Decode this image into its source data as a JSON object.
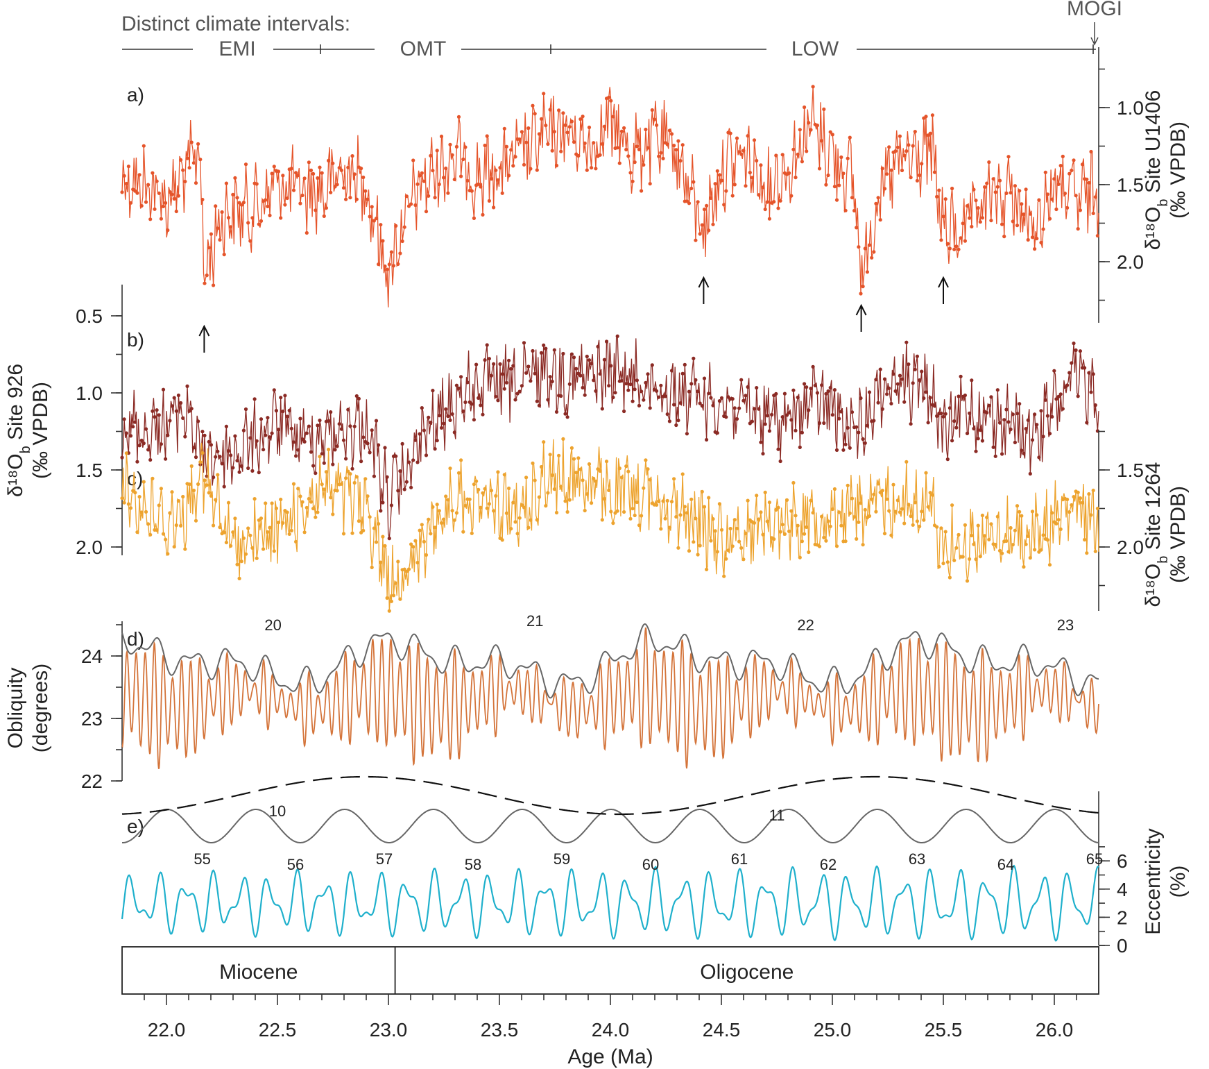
{
  "chart_data": {
    "type": "line",
    "xlabel": "Age (Ma)",
    "xlim": [
      21.8,
      26.2
    ],
    "xticks": [
      "22.0",
      "22.5",
      "23.0",
      "23.5",
      "24.0",
      "24.5",
      "25.0",
      "25.5",
      "26.0"
    ],
    "intervals": {
      "caption": "Distinct climate intervals:",
      "labels": [
        {
          "label": "EMI",
          "start": 21.8,
          "end": 22.72
        },
        {
          "label": "OMT",
          "start": 22.72,
          "end": 23.72
        },
        {
          "label": "LOW",
          "start": 23.72,
          "end": 26.18
        },
        {
          "label": "MOGI",
          "start": 26.18,
          "end": 26.2
        }
      ]
    },
    "panels": [
      {
        "id": "a",
        "panel_label": "a)",
        "ylabel": "δ18Ob Site U1406 (‰ VPDB)",
        "ylabel_line1": "δ¹⁸O",
        "ylabel_sub": "b",
        "ylabel_rest": " Site U1406",
        "ylabel_line2": "(‰ VPDB)",
        "axis_side": "right",
        "yinverted": true,
        "ylim": [
          0.7,
          2.4
        ],
        "yticks": [
          "1.0",
          "1.5",
          "2.0"
        ],
        "color": "#e5542a",
        "series_anchors": [
          [
            21.8,
            1.45
          ],
          [
            21.9,
            1.5
          ],
          [
            22.0,
            1.6
          ],
          [
            22.1,
            1.4
          ],
          [
            22.15,
            1.25
          ],
          [
            22.17,
            2.1
          ],
          [
            22.25,
            1.7
          ],
          [
            22.4,
            1.65
          ],
          [
            22.5,
            1.5
          ],
          [
            22.6,
            1.55
          ],
          [
            22.7,
            1.55
          ],
          [
            22.8,
            1.4
          ],
          [
            22.9,
            1.5
          ],
          [
            23.0,
            2.1
          ],
          [
            23.05,
            1.8
          ],
          [
            23.15,
            1.5
          ],
          [
            23.3,
            1.3
          ],
          [
            23.4,
            1.45
          ],
          [
            23.5,
            1.4
          ],
          [
            23.6,
            1.3
          ],
          [
            23.7,
            1.2
          ],
          [
            23.8,
            1.15
          ],
          [
            23.9,
            1.25
          ],
          [
            24.0,
            1.1
          ],
          [
            24.1,
            1.3
          ],
          [
            24.2,
            1.2
          ],
          [
            24.3,
            1.3
          ],
          [
            24.42,
            1.8
          ],
          [
            24.5,
            1.4
          ],
          [
            24.6,
            1.3
          ],
          [
            24.7,
            1.5
          ],
          [
            24.8,
            1.4
          ],
          [
            24.9,
            1.1
          ],
          [
            25.0,
            1.3
          ],
          [
            25.1,
            1.5
          ],
          [
            25.13,
            2.1
          ],
          [
            25.2,
            1.6
          ],
          [
            25.3,
            1.35
          ],
          [
            25.45,
            1.3
          ],
          [
            25.5,
            1.8
          ],
          [
            25.6,
            1.8
          ],
          [
            25.7,
            1.6
          ],
          [
            25.8,
            1.55
          ],
          [
            25.9,
            1.8
          ],
          [
            26.0,
            1.5
          ],
          [
            26.1,
            1.6
          ],
          [
            26.2,
            1.55
          ]
        ],
        "amplitude": 0.22,
        "arrows": [
          22.17,
          24.42,
          25.13,
          25.5
        ]
      },
      {
        "id": "b",
        "panel_label": "b)",
        "ylabel": "δ18Ob Site 926 (‰ VPDB)",
        "ylabel_line1": "δ¹⁸O",
        "ylabel_sub": "b",
        "ylabel_rest": " Site 926",
        "ylabel_line2": "(‰ VPDB)",
        "axis_side": "left",
        "yinverted": true,
        "ylim": [
          0.3,
          2.1
        ],
        "yticks": [
          "0.5",
          "1.0",
          "1.5",
          "2.0"
        ],
        "color": "#8b2a24",
        "series_anchors": [
          [
            21.8,
            1.2
          ],
          [
            21.9,
            1.25
          ],
          [
            22.0,
            1.2
          ],
          [
            22.1,
            1.1
          ],
          [
            22.15,
            1.4
          ],
          [
            22.3,
            1.4
          ],
          [
            22.5,
            1.2
          ],
          [
            22.6,
            1.3
          ],
          [
            22.8,
            1.25
          ],
          [
            22.9,
            1.2
          ],
          [
            23.0,
            1.7
          ],
          [
            23.05,
            1.6
          ],
          [
            23.15,
            1.3
          ],
          [
            23.3,
            1.05
          ],
          [
            23.4,
            0.95
          ],
          [
            23.6,
            0.95
          ],
          [
            23.7,
            0.85
          ],
          [
            23.8,
            0.9
          ],
          [
            23.9,
            0.9
          ],
          [
            24.0,
            0.85
          ],
          [
            24.2,
            0.95
          ],
          [
            24.3,
            1.0
          ],
          [
            24.5,
            1.05
          ],
          [
            24.6,
            1.1
          ],
          [
            24.8,
            1.2
          ],
          [
            24.9,
            1.05
          ],
          [
            25.0,
            1.1
          ],
          [
            25.1,
            1.3
          ],
          [
            25.2,
            1.0
          ],
          [
            25.3,
            0.9
          ],
          [
            25.45,
            1.0
          ],
          [
            25.5,
            1.3
          ],
          [
            25.6,
            1.1
          ],
          [
            25.8,
            1.2
          ],
          [
            25.9,
            1.3
          ],
          [
            26.0,
            1.1
          ],
          [
            26.1,
            0.9
          ],
          [
            26.2,
            1.0
          ]
        ],
        "amplitude": 0.2
      },
      {
        "id": "c",
        "panel_label": "c)",
        "ylabel": "δ18Ob Site 1264 (‰ VPDB)",
        "ylabel_line1": "δ¹⁸O",
        "ylabel_sub": "b",
        "ylabel_rest": " Site 1264",
        "ylabel_line2": "(‰ VPDB)",
        "axis_side": "right",
        "yinverted": true,
        "ylim": [
          1.2,
          2.4
        ],
        "yticks": [
          "1.5",
          "2.0"
        ],
        "color": "#eda32e",
        "series_anchors": [
          [
            21.8,
            1.6
          ],
          [
            21.9,
            1.75
          ],
          [
            22.0,
            1.85
          ],
          [
            22.1,
            1.75
          ],
          [
            22.15,
            1.5
          ],
          [
            22.3,
            2.0
          ],
          [
            22.5,
            1.9
          ],
          [
            22.7,
            1.6
          ],
          [
            22.9,
            1.75
          ],
          [
            23.0,
            2.2
          ],
          [
            23.1,
            2.15
          ],
          [
            23.2,
            1.9
          ],
          [
            23.3,
            1.65
          ],
          [
            23.5,
            1.75
          ],
          [
            23.6,
            1.8
          ],
          [
            23.7,
            1.55
          ],
          [
            23.85,
            1.55
          ],
          [
            24.0,
            1.65
          ],
          [
            24.2,
            1.65
          ],
          [
            24.35,
            1.8
          ],
          [
            24.5,
            1.95
          ],
          [
            24.7,
            1.85
          ],
          [
            24.9,
            1.8
          ],
          [
            25.1,
            1.75
          ],
          [
            25.3,
            1.7
          ],
          [
            25.45,
            1.75
          ],
          [
            25.5,
            2.0
          ],
          [
            25.7,
            1.95
          ],
          [
            25.9,
            1.9
          ],
          [
            26.1,
            1.75
          ],
          [
            26.2,
            1.85
          ]
        ],
        "amplitude": 0.2
      },
      {
        "id": "d",
        "panel_label": "d)",
        "ylabel": "Obliquity (degrees)",
        "ylabel_line1": "Obliquity",
        "ylabel_sub": "",
        "ylabel_rest": "",
        "ylabel_line2": "(degrees)",
        "axis_side": "left",
        "yinverted": false,
        "ylim": [
          22,
          25
        ],
        "yticks": [
          "22",
          "23",
          "24"
        ],
        "color": "#d4743a",
        "envelope_color": "#666666",
        "period_ma": 0.041,
        "mean": 23.3,
        "cycle_labels": [
          {
            "label": "20",
            "x": 22.48
          },
          {
            "label": "21",
            "x": 23.66
          },
          {
            "label": "22",
            "x": 24.88
          },
          {
            "label": "23",
            "x": 26.05
          }
        ]
      },
      {
        "id": "e",
        "panel_label": "e)",
        "ylabel": "Eccentricity (%)",
        "ylabel_line1": "Eccentricity",
        "ylabel_sub": "",
        "ylabel_rest": "",
        "ylabel_line2": "(%)",
        "axis_side": "right",
        "yinverted": false,
        "ylim": [
          0,
          7.2
        ],
        "yticks": [
          "0",
          "2",
          "4",
          "6"
        ],
        "color": "#1fb0cc",
        "short_cycle_color": "#666666",
        "long_cycle_color": "#111111",
        "short_cycle_labels": [
          {
            "label": "55",
            "x": 21.88
          },
          {
            "label": "56",
            "x": 22.3
          },
          {
            "label": "57",
            "x": 22.7
          },
          {
            "label": "58",
            "x": 23.1
          },
          {
            "label": "59",
            "x": 23.5
          },
          {
            "label": "60",
            "x": 23.9
          },
          {
            "label": "61",
            "x": 24.3
          },
          {
            "label": "62",
            "x": 24.7
          },
          {
            "label": "63",
            "x": 25.1
          },
          {
            "label": "64",
            "x": 25.5
          },
          {
            "label": "65",
            "x": 25.9
          }
        ],
        "long_cycle_labels": [
          {
            "label": "10",
            "x": 22.5
          },
          {
            "label": "11",
            "x": 24.75
          }
        ]
      }
    ],
    "epochs": [
      {
        "label": "Miocene",
        "start": 21.8,
        "end": 23.03
      },
      {
        "label": "Oligocene",
        "start": 23.03,
        "end": 26.2
      }
    ]
  }
}
